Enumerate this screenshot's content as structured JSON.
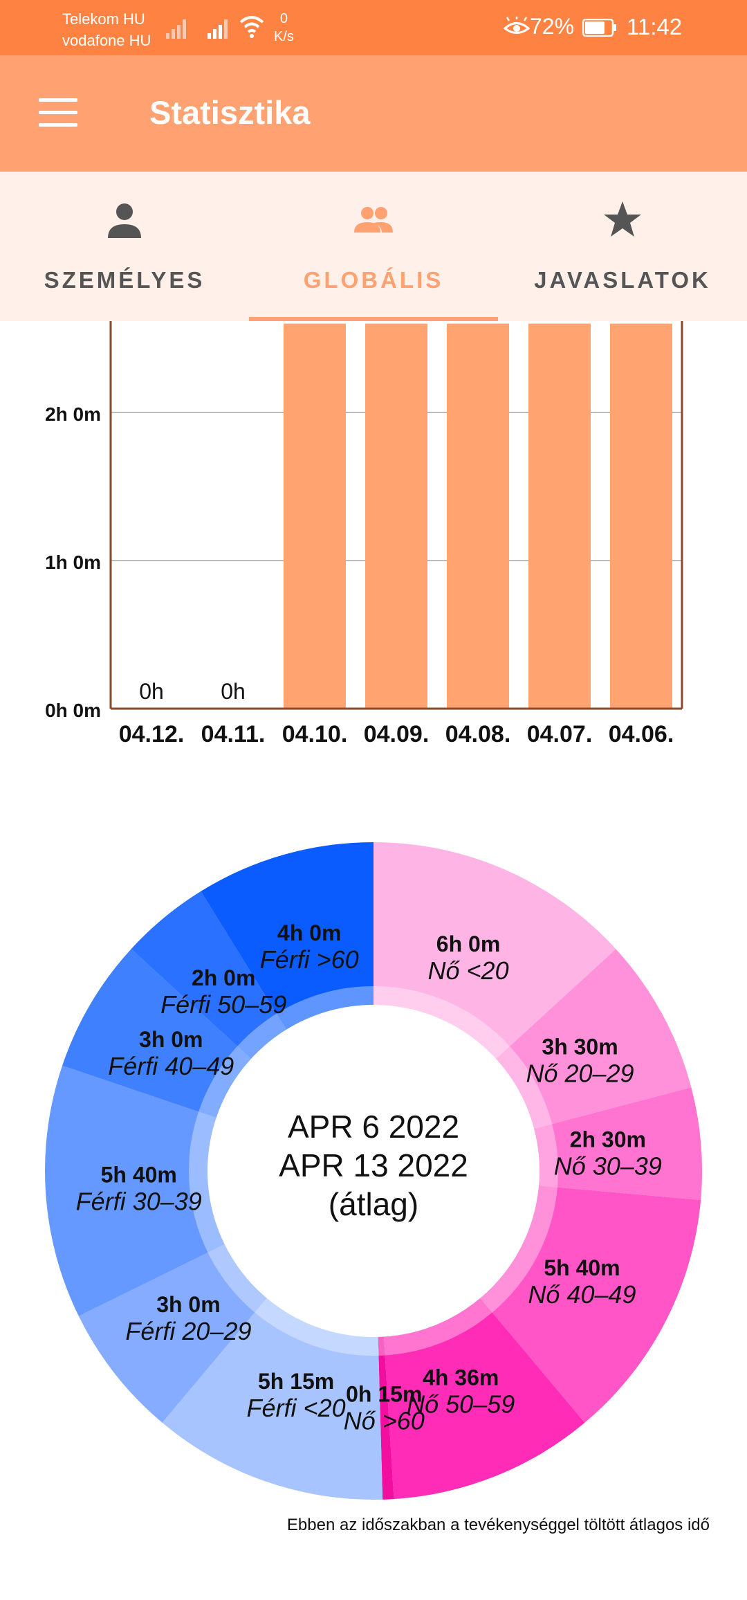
{
  "status_bar": {
    "carrier_1": "Telekom HU",
    "carrier_2": "vodafone HU",
    "net_speed_value": "0",
    "net_speed_unit": "K/s",
    "battery": "72%",
    "time": "11:42"
  },
  "app_bar": {
    "title": "Statisztika",
    "menu_icon": "menu-icon"
  },
  "tabs": [
    {
      "label": "SZEMÉLYES",
      "icon": "person-icon",
      "active": false
    },
    {
      "label": "GLOBÁLIS",
      "icon": "group-icon",
      "active": true
    },
    {
      "label": "JAVASLATOK",
      "icon": "star-icon",
      "active": false
    }
  ],
  "colors": {
    "accent": "#ffa170",
    "status_bar": "#fe8343",
    "tab_bg": "#fff0ea",
    "bar": "#ffa370"
  },
  "chart_data": [
    {
      "type": "bar",
      "categories": [
        "04.12.",
        "04.11.",
        "04.10.",
        "04.09.",
        "04.08.",
        "04.07.",
        "04.06."
      ],
      "value_labels": [
        "0h",
        "0h",
        "",
        "",
        "",
        "",
        ""
      ],
      "yticks": [
        "0h 0m",
        "1h 0m",
        "2h 0m"
      ],
      "ylim_visible_hours": [
        0,
        2.6
      ],
      "grid": true,
      "values_hours": [
        0,
        0,
        2.6,
        2.6,
        2.6,
        2.6,
        2.6
      ],
      "values_note_visible": "bars 04.10.-04.06. extend above the visible area"
    },
    {
      "type": "pie",
      "donut": true,
      "center_lines": [
        "APR 6 2022",
        "APR 13 2022",
        "(átlag)"
      ],
      "slices": [
        {
          "value_label": "6h 0m",
          "label": "Nő <20",
          "minutes": 360,
          "color": "#ffb4e6"
        },
        {
          "value_label": "3h 30m",
          "label": "Nő 20–29",
          "minutes": 210,
          "color": "#ff91da"
        },
        {
          "value_label": "2h 30m",
          "label": "Nő 30–39",
          "minutes": 150,
          "color": "#ff74d1"
        },
        {
          "value_label": "5h 40m",
          "label": "Nő 40–49",
          "minutes": 340,
          "color": "#ff55c6"
        },
        {
          "value_label": "4h 36m",
          "label": "Nő 50–59",
          "minutes": 276,
          "color": "#ff2cb7"
        },
        {
          "value_label": "0h 15m",
          "label": "Nő >60",
          "minutes": 15,
          "color": "#f20fa0"
        },
        {
          "value_label": "5h 15m",
          "label": "Férfi <20",
          "minutes": 315,
          "color": "#a7c4ff"
        },
        {
          "value_label": "3h 0m",
          "label": "Férfi 20–29",
          "minutes": 180,
          "color": "#85acff"
        },
        {
          "value_label": "5h 40m",
          "label": "Férfi 30–39",
          "minutes": 340,
          "color": "#6699ff"
        },
        {
          "value_label": "3h 0m",
          "label": "Férfi 40–49",
          "minutes": 180,
          "color": "#3f80ff"
        },
        {
          "value_label": "2h 0m",
          "label": "Férfi 50–59",
          "minutes": 120,
          "color": "#2a71ff"
        },
        {
          "value_label": "4h 0m",
          "label": "Férfi >60",
          "minutes": 240,
          "color": "#0a5cff"
        }
      ]
    }
  ],
  "footnote": "Ebben az időszakban a tevékenységgel töltött átlagos idő"
}
